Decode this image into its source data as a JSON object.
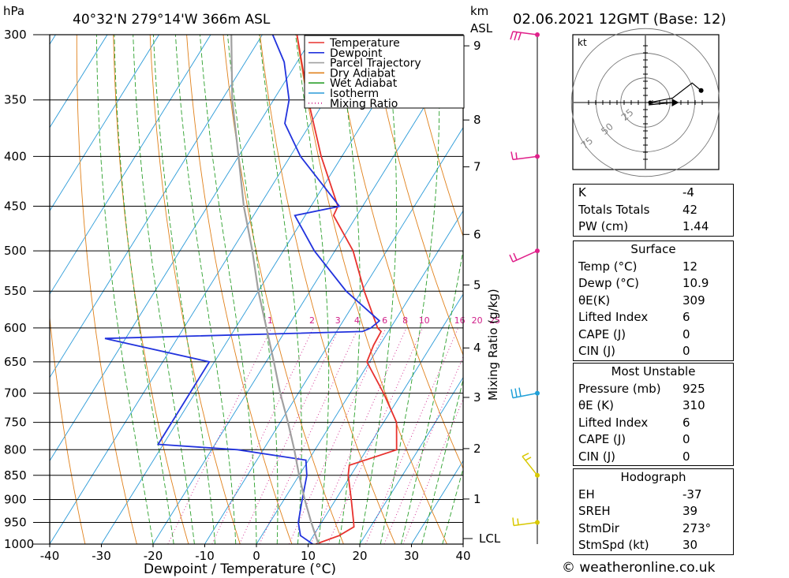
{
  "header": {
    "pressure_unit": "hPa",
    "location": "40°32'N  279°14'W  366m  ASL",
    "km_unit": "km",
    "asl": "ASL",
    "date": "02.06.2021  12GMT  (Base: 12)"
  },
  "legend": [
    "Temperature",
    "Dewpoint",
    "Parcel Trajectory",
    "Dry Adiabat",
    "Wet Adiabat",
    "Isotherm",
    "Mixing Ratio"
  ],
  "colors": {
    "temperature": "#e8322e",
    "dewpoint": "#2233dd",
    "parcel": "#a0a0a0",
    "dry_adiabat": "#e0801a",
    "wet_adiabat": "#2ca02c",
    "isotherm": "#2a9ad8",
    "mixing_ratio": "#d0208a",
    "wind_magenta": "#e0208a",
    "wind_cyan": "#20a0d8",
    "wind_yellow": "#d8c800"
  },
  "chart_data": {
    "type": "line",
    "title": "40°32'N 279°14'W 366m ASL",
    "xlabel": "Dewpoint / Temperature (°C)",
    "ylabel": "hPa",
    "xlim": [
      -40,
      40
    ],
    "plim": [
      1000,
      300
    ],
    "x_ticks": [
      "-40",
      "-30",
      "-20",
      "-10",
      "0",
      "10",
      "20",
      "30",
      "40"
    ],
    "pressure_levels": [
      "300",
      "350",
      "400",
      "450",
      "500",
      "550",
      "600",
      "650",
      "700",
      "750",
      "800",
      "850",
      "900",
      "950",
      "1000"
    ],
    "km_ticks": [
      "9",
      "8",
      "7",
      "6",
      "5",
      "4",
      "3",
      "2",
      "1"
    ],
    "km_pressures": [
      308,
      367,
      410,
      481,
      542,
      629,
      707,
      798,
      899
    ],
    "lcl_label": "LCL",
    "lcl_pressure": 987,
    "mixing_ratio_axis_label": "Mixing Ratio (g/kg)",
    "mixing_ratio_labels": [
      "1",
      "2",
      "3",
      "4",
      "6",
      "8",
      "10",
      "16",
      "20",
      "25"
    ],
    "series": [
      {
        "name": "Temperature",
        "points": [
          [
            1000,
            11.5
          ],
          [
            980,
            15
          ],
          [
            960,
            16.8
          ],
          [
            950,
            16.2
          ],
          [
            900,
            13
          ],
          [
            850,
            9.5
          ],
          [
            830,
            8.5
          ],
          [
            815,
            12.2
          ],
          [
            800,
            15.8
          ],
          [
            750,
            12.5
          ],
          [
            700,
            6.5
          ],
          [
            650,
            -0.5
          ],
          [
            625,
            -1.2
          ],
          [
            605,
            -1.4
          ],
          [
            600,
            -2.5
          ],
          [
            550,
            -9.5
          ],
          [
            500,
            -16.5
          ],
          [
            460,
            -24.5
          ],
          [
            450,
            -24.8
          ],
          [
            400,
            -34
          ],
          [
            350,
            -43.3
          ],
          [
            300,
            -53.3
          ]
        ]
      },
      {
        "name": "Dewpoint",
        "points": [
          [
            1000,
            10.9
          ],
          [
            980,
            7.5
          ],
          [
            950,
            5.5
          ],
          [
            900,
            3.5
          ],
          [
            850,
            1.5
          ],
          [
            820,
            -0.5
          ],
          [
            800,
            -15
          ],
          [
            790,
            -31
          ],
          [
            750,
            -31
          ],
          [
            700,
            -31
          ],
          [
            650,
            -31
          ],
          [
            615,
            -54
          ],
          [
            605,
            -5
          ],
          [
            600,
            -3.8
          ],
          [
            590,
            -3
          ],
          [
            550,
            -13
          ],
          [
            500,
            -24
          ],
          [
            460,
            -32
          ],
          [
            450,
            -24.5
          ],
          [
            400,
            -38
          ],
          [
            370,
            -45
          ],
          [
            350,
            -47
          ],
          [
            320,
            -52.5
          ],
          [
            300,
            -58
          ]
        ]
      },
      {
        "name": "Parcel Trajectory",
        "points": [
          [
            1000,
            12
          ],
          [
            950,
            8
          ],
          [
            900,
            4
          ],
          [
            850,
            0
          ],
          [
            800,
            -4
          ],
          [
            750,
            -8.5
          ],
          [
            700,
            -13.5
          ],
          [
            650,
            -18.5
          ],
          [
            600,
            -24
          ],
          [
            550,
            -30
          ],
          [
            500,
            -36
          ],
          [
            450,
            -43
          ],
          [
            400,
            -50
          ],
          [
            350,
            -58
          ],
          [
            300,
            -66
          ]
        ]
      }
    ],
    "winds": [
      {
        "pressure": 300,
        "color": "magenta"
      },
      {
        "pressure": 400,
        "color": "magenta"
      },
      {
        "pressure": 500,
        "color": "magenta"
      },
      {
        "pressure": 700,
        "color": "cyan"
      },
      {
        "pressure": 850,
        "color": "yellow"
      },
      {
        "pressure": 950,
        "color": "yellow"
      }
    ],
    "hodograph": {
      "unit": "kt",
      "ring_labels": [
        "25",
        "50",
        "75"
      ],
      "trace": [
        [
          0,
          0
        ],
        [
          15,
          -3
        ],
        [
          28,
          -13
        ],
        [
          34,
          -8
        ]
      ],
      "storm_motion": [
        15,
        0
      ]
    }
  },
  "indices": [
    {
      "label": "K",
      "value": "-4"
    },
    {
      "label": "Totals Totals",
      "value": "42"
    },
    {
      "label": "PW (cm)",
      "value": "1.44"
    }
  ],
  "surface": {
    "title": "Surface",
    "rows": [
      {
        "label": "Temp (°C)",
        "value": "12"
      },
      {
        "label": "Dewp (°C)",
        "value": "10.9"
      },
      {
        "label": "θE(K)",
        "value": "309"
      },
      {
        "label": "Lifted Index",
        "value": "6"
      },
      {
        "label": "CAPE (J)",
        "value": "0"
      },
      {
        "label": "CIN (J)",
        "value": "0"
      }
    ]
  },
  "most_unstable": {
    "title": "Most Unstable",
    "rows": [
      {
        "label": "Pressure (mb)",
        "value": "925"
      },
      {
        "label": "θE (K)",
        "value": "310"
      },
      {
        "label": "Lifted Index",
        "value": "6"
      },
      {
        "label": "CAPE (J)",
        "value": "0"
      },
      {
        "label": "CIN (J)",
        "value": "0"
      }
    ]
  },
  "hodograph_table": {
    "title": "Hodograph",
    "rows": [
      {
        "label": "EH",
        "value": "-37"
      },
      {
        "label": "SREH",
        "value": "39"
      },
      {
        "label": "StmDir",
        "value": "273°"
      },
      {
        "label": "StmSpd (kt)",
        "value": "30"
      }
    ]
  },
  "credit": "© weatheronline.co.uk"
}
